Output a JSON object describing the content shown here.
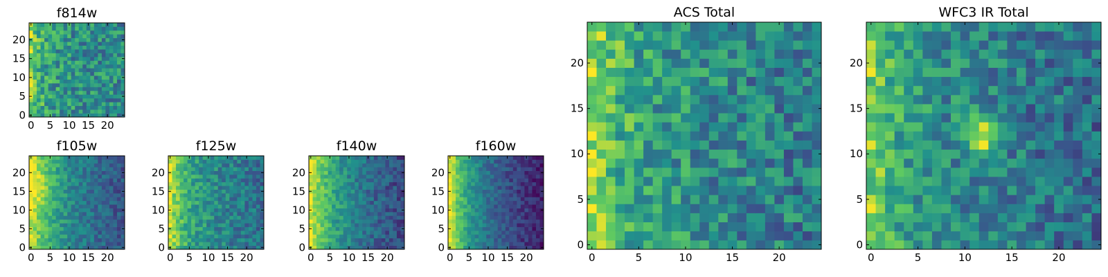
{
  "colormap": [
    "#440154",
    "#3b528b",
    "#21918c",
    "#5ec962",
    "#fde725"
  ],
  "chart_data": [
    {
      "type": "heatmap",
      "title": "f814w",
      "size": 25,
      "seed": 11,
      "profile": {
        "base": 0.52,
        "left": 0.28,
        "leftscale": 3.0,
        "rightdrop": 0.05,
        "noise": 0.42,
        "hotspot": null
      },
      "xticks": [
        0,
        5,
        10,
        15,
        20
      ],
      "yticks": [
        0,
        5,
        10,
        15,
        20
      ],
      "xtick_labels": [
        "0",
        "5",
        "10",
        "15",
        "20"
      ],
      "ytick_labels": [
        "0",
        "5",
        "10",
        "15",
        "20"
      ]
    },
    {
      "type": "heatmap",
      "title": "f105w",
      "size": 25,
      "seed": 23,
      "profile": {
        "base": 0.5,
        "left": 0.42,
        "leftscale": 6.0,
        "rightdrop": 0.25,
        "noise": 0.24,
        "hotspot": {
          "x": 1,
          "y": 16,
          "r": 4,
          "amp": 0.15
        }
      },
      "xticks": [
        0,
        5,
        10,
        15,
        20
      ],
      "yticks": [
        0,
        5,
        10,
        15,
        20
      ],
      "xtick_labels": [
        "0",
        "5",
        "10",
        "15",
        "20"
      ],
      "ytick_labels": [
        "0",
        "5",
        "10",
        "15",
        "20"
      ]
    },
    {
      "type": "heatmap",
      "title": "f125w",
      "size": 25,
      "seed": 37,
      "profile": {
        "base": 0.55,
        "left": 0.35,
        "leftscale": 4.0,
        "rightdrop": 0.2,
        "noise": 0.3,
        "hotspot": null
      },
      "xticks": [
        0,
        5,
        10,
        15,
        20
      ],
      "yticks": [
        0,
        5,
        10,
        15,
        20
      ],
      "xtick_labels": [
        "0",
        "5",
        "10",
        "15",
        "20"
      ],
      "ytick_labels": [
        "0",
        "5",
        "10",
        "15",
        "20"
      ]
    },
    {
      "type": "heatmap",
      "title": "f140w",
      "size": 25,
      "seed": 49,
      "profile": {
        "base": 0.5,
        "left": 0.45,
        "leftscale": 6.0,
        "rightdrop": 0.3,
        "noise": 0.25,
        "hotspot": null
      },
      "xticks": [
        0,
        5,
        10,
        15,
        20
      ],
      "yticks": [
        0,
        5,
        10,
        15,
        20
      ],
      "xtick_labels": [
        "0",
        "5",
        "10",
        "15",
        "20"
      ],
      "ytick_labels": [
        "0",
        "5",
        "10",
        "15",
        "20"
      ]
    },
    {
      "type": "heatmap",
      "title": "f160w",
      "size": 25,
      "seed": 61,
      "profile": {
        "base": 0.45,
        "left": 0.5,
        "leftscale": 5.0,
        "rightdrop": 0.38,
        "noise": 0.2,
        "hotspot": null
      },
      "xticks": [
        0,
        5,
        10,
        15,
        20
      ],
      "yticks": [
        0,
        5,
        10,
        15,
        20
      ],
      "xtick_labels": [
        "0",
        "5",
        "10",
        "15",
        "20"
      ],
      "ytick_labels": [
        "0",
        "5",
        "10",
        "15",
        "20"
      ]
    },
    {
      "type": "heatmap",
      "title": "ACS Total",
      "size": 25,
      "seed": 73,
      "profile": {
        "base": 0.55,
        "left": 0.3,
        "leftscale": 3.5,
        "rightdrop": 0.15,
        "noise": 0.42,
        "hotspot": null
      },
      "xticks": [
        0,
        5,
        10,
        15,
        20
      ],
      "yticks": [
        0,
        5,
        10,
        15,
        20
      ],
      "xtick_labels": [
        "0",
        "5",
        "10",
        "15",
        "20"
      ],
      "ytick_labels": [
        "0",
        "5",
        "10",
        "15",
        "20"
      ]
    },
    {
      "type": "heatmap",
      "title": "WFC3 IR Total",
      "size": 25,
      "seed": 89,
      "profile": {
        "base": 0.5,
        "left": 0.3,
        "leftscale": 3.5,
        "rightdrop": 0.15,
        "noise": 0.38,
        "hotspot": {
          "x": 12,
          "y": 12,
          "r": 1.5,
          "amp": 0.45
        }
      },
      "xticks": [
        0,
        5,
        10,
        15,
        20
      ],
      "yticks": [
        0,
        5,
        10,
        15,
        20
      ],
      "xtick_labels": [
        "0",
        "5",
        "10",
        "15",
        "20"
      ],
      "ytick_labels": [
        "0",
        "5",
        "10",
        "15",
        "20"
      ]
    }
  ]
}
